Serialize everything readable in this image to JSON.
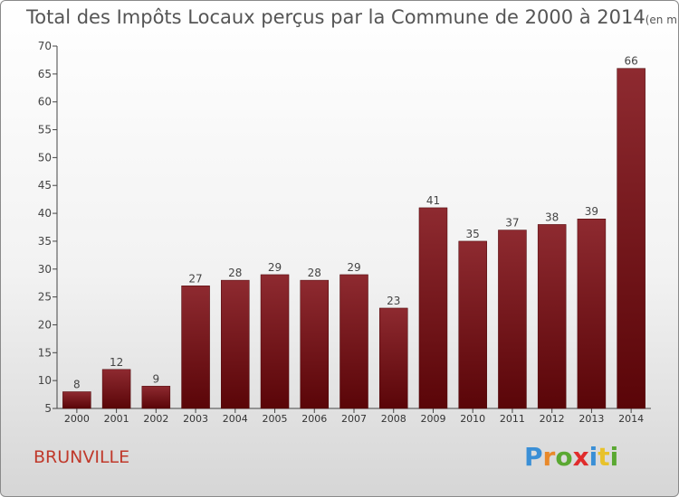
{
  "chart_data": {
    "type": "bar",
    "title": "Total des Impôts Locaux perçus par la Commune de 2000 à 2014",
    "unit": "(en milliers d'€)",
    "categories": [
      "2000",
      "2001",
      "2002",
      "2003",
      "2004",
      "2005",
      "2006",
      "2007",
      "2008",
      "2009",
      "2010",
      "2011",
      "2012",
      "2013",
      "2014"
    ],
    "values": [
      8,
      12,
      9,
      27,
      28,
      29,
      28,
      29,
      23,
      41,
      35,
      37,
      38,
      39,
      66
    ],
    "ylim": [
      5,
      70
    ],
    "yticks": [
      5,
      10,
      15,
      20,
      25,
      30,
      35,
      40,
      45,
      50,
      55,
      60,
      65,
      70
    ],
    "xlabel": "",
    "ylabel": "",
    "grid": false,
    "bar_color": "#7a1b1f"
  },
  "footer": {
    "commune": "BRUNVILLE",
    "logo": [
      "P",
      "r",
      "o",
      "x",
      "i",
      "t",
      "i"
    ],
    "logo_colors": [
      "#3a8fd6",
      "#e8892a",
      "#5aa832",
      "#e02c2c",
      "#3a8fd6",
      "#e8c22a",
      "#5aa832"
    ]
  }
}
